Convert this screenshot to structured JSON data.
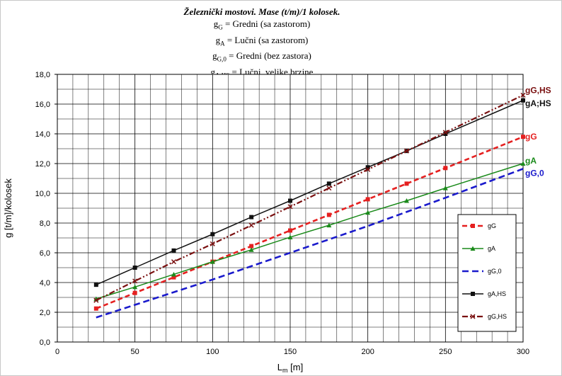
{
  "chart_data": {
    "type": "line",
    "title": "Železnički mostovi. Mase (t/m)/1 kolosek.",
    "subtitle_lines": [
      {
        "sym": "g",
        "sub": "G",
        "text": " = Gredni  (sa zastorom)"
      },
      {
        "sym": "g",
        "sub": "A",
        "text": " = Lučni  (sa zastorom)"
      },
      {
        "sym": "g",
        "sub": "G,0",
        "text": " = Gredni  (bez zastora)"
      },
      {
        "sym": "g",
        "sub": "A,HS",
        "text": " = Lučni,  velike  brzine"
      }
    ],
    "xlabel": "m",
    "xlabel_main": "L",
    "xlabel_unit": "[m]",
    "ylabel": "g  [t/m]/kolosek",
    "xlim": [
      0,
      300
    ],
    "ylim": [
      0,
      18
    ],
    "xticks": [
      "0",
      "50",
      "100",
      "150",
      "200",
      "250",
      "300"
    ],
    "yticks": [
      "0,0",
      "2,0",
      "4,0",
      "6,0",
      "8,0",
      "10,0",
      "12,0",
      "14,0",
      "16,0",
      "18,0"
    ],
    "grid": true,
    "legend_position": "right-lower",
    "x": [
      25,
      50,
      75,
      100,
      125,
      150,
      175,
      200,
      225,
      250,
      300
    ],
    "series": [
      {
        "name": "gG",
        "end_label": "gG",
        "color": "#e52020",
        "dash": "7,4",
        "width": 2.6,
        "marker": "square",
        "values": [
          2.25,
          3.3,
          4.35,
          5.4,
          6.45,
          7.5,
          8.55,
          9.6,
          10.65,
          11.7,
          13.8
        ]
      },
      {
        "name": "gA",
        "end_label": "gA",
        "color": "#1a8a1a",
        "dash": "",
        "width": 1.5,
        "marker": "triangle",
        "values": [
          2.9,
          3.7,
          4.55,
          5.4,
          6.2,
          7.05,
          7.85,
          8.7,
          9.5,
          10.35,
          12.0
        ]
      },
      {
        "name": "gG,0",
        "end_label": "gG,0",
        "color": "#1a1acc",
        "dash": "9,5",
        "width": 2.6,
        "marker": "none",
        "values": [
          1.65,
          2.5,
          3.35,
          4.2,
          5.1,
          6.0,
          6.9,
          7.8,
          8.75,
          9.7,
          11.65
        ]
      },
      {
        "name": "gA,HS",
        "end_label": "gA;HS",
        "color": "#111111",
        "dash": "",
        "width": 1.5,
        "marker": "square",
        "values": [
          3.85,
          5.0,
          6.15,
          7.25,
          8.4,
          9.5,
          10.65,
          11.75,
          12.85,
          14.0,
          16.25
        ]
      },
      {
        "name": "gG,HS",
        "end_label": "gG,HS",
        "color": "#7a1010",
        "dash": "8,3,2,3,2,3",
        "width": 2.2,
        "marker": "x",
        "values": [
          2.8,
          4.1,
          5.4,
          6.6,
          7.85,
          9.1,
          10.35,
          11.6,
          12.85,
          14.1,
          16.6
        ]
      }
    ]
  }
}
